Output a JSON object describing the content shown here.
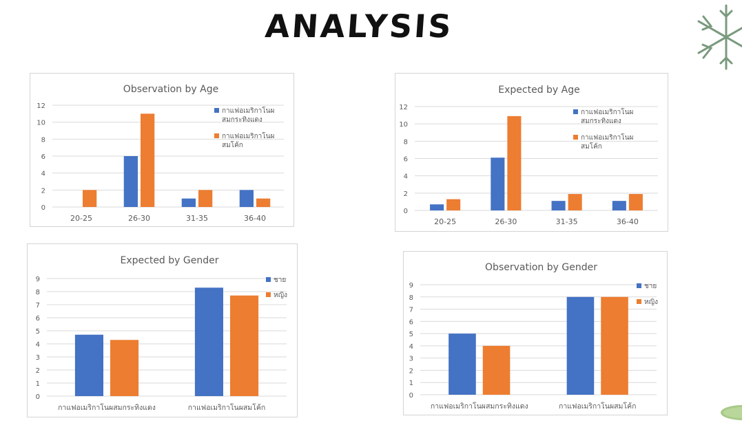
{
  "page": {
    "title": "ANALYSIS",
    "icons": {
      "snowflake": "snowflake-icon",
      "leaf": "leaf-decoration"
    }
  },
  "colors": {
    "series1": "#4472C4",
    "series2": "#ED7D31",
    "grid": "#d9d9d9",
    "axis_text": "#595959",
    "title_text": "#595959"
  },
  "chart_data": [
    {
      "id": "obs-age",
      "type": "bar",
      "title": "Observation by Age",
      "categories": [
        "20-25",
        "26-30",
        "31-35",
        "36-40"
      ],
      "series": [
        {
          "name": "กาแฟอเมริกาโนผสมกระทิงแดง",
          "values": [
            0,
            6,
            1,
            2
          ]
        },
        {
          "name": "กาแฟอเมริกาโนผสมโค้ก",
          "values": [
            2,
            11,
            2,
            1
          ]
        }
      ],
      "ylim": [
        0,
        12
      ],
      "yticks": [
        0,
        2,
        4,
        6,
        8,
        10,
        12
      ],
      "grid": true,
      "legend": "right"
    },
    {
      "id": "exp-age",
      "type": "bar",
      "title": "Expected by Age",
      "categories": [
        "20-25",
        "26-30",
        "31-35",
        "36-40"
      ],
      "series": [
        {
          "name": "กาแฟอเมริกาโนผสมกระทิงแดง",
          "values": [
            0.7,
            6.1,
            1.1,
            1.1
          ]
        },
        {
          "name": "กาแฟอเมริกาโนผสมโค้ก",
          "values": [
            1.3,
            10.9,
            1.9,
            1.9
          ]
        }
      ],
      "ylim": [
        0,
        12
      ],
      "yticks": [
        0,
        2,
        4,
        6,
        8,
        10,
        12
      ],
      "grid": true,
      "legend": "right"
    },
    {
      "id": "exp-gender",
      "type": "bar",
      "title": "Expected by Gender",
      "categories": [
        "กาแฟอเมริกาโนผสมกระทิงแดง",
        "กาแฟอเมริกาโนผสมโค้ก"
      ],
      "series": [
        {
          "name": "ชาย",
          "values": [
            4.7,
            8.3
          ]
        },
        {
          "name": "หญิง",
          "values": [
            4.3,
            7.7
          ]
        }
      ],
      "ylim": [
        0,
        9
      ],
      "yticks": [
        0,
        1,
        2,
        3,
        4,
        5,
        6,
        7,
        8,
        9
      ],
      "grid": true,
      "legend": "right"
    },
    {
      "id": "obs-gender",
      "type": "bar",
      "title": "Observation by Gender",
      "categories": [
        "กาแฟอเมริกาโนผสมกระทิงแดง",
        "กาแฟอเมริกาโนผสมโค้ก"
      ],
      "series": [
        {
          "name": "ชาย",
          "values": [
            5,
            8
          ]
        },
        {
          "name": "หญิง",
          "values": [
            4,
            8
          ]
        }
      ],
      "ylim": [
        0,
        9
      ],
      "yticks": [
        0,
        1,
        2,
        3,
        4,
        5,
        6,
        7,
        8,
        9
      ],
      "grid": true,
      "legend": "right"
    }
  ]
}
